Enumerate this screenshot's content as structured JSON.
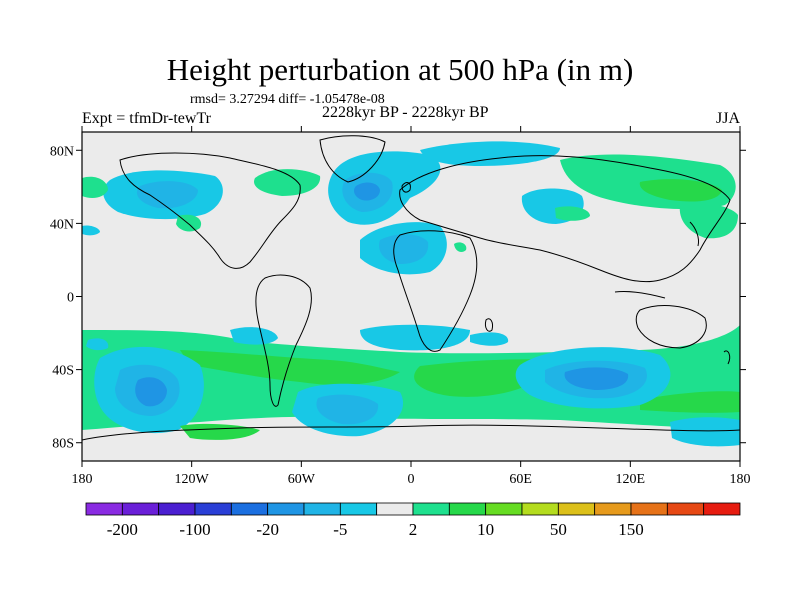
{
  "title": "Height perturbation at 500 hPa (in m)",
  "stats_line": "rmsd= 3.27294 diff= -1.05478e-08",
  "experiment": "Expt = tfmDr-tewTr",
  "period": "2228kyr BP - 2228kyr BP",
  "season": "JJA",
  "map": {
    "projection": "cylindrical equidistant",
    "lon_range": [
      -180,
      180
    ],
    "lat_range": [
      -90,
      90
    ],
    "background_color": "#ebebeb",
    "lat_ticks": [
      {
        "value": 80,
        "label": "80N"
      },
      {
        "value": 40,
        "label": "40N"
      },
      {
        "value": 0,
        "label": "0"
      },
      {
        "value": -40,
        "label": "40S"
      },
      {
        "value": -80,
        "label": "80S"
      }
    ],
    "lon_ticks": [
      {
        "value": -180,
        "label": "180"
      },
      {
        "value": -120,
        "label": "120W"
      },
      {
        "value": -60,
        "label": "60W"
      },
      {
        "value": 0,
        "label": "0"
      },
      {
        "value": 60,
        "label": "60E"
      },
      {
        "value": 120,
        "label": "120E"
      },
      {
        "value": 180,
        "label": "180"
      }
    ]
  },
  "colorbar": {
    "colors": [
      "#8a2be2",
      "#6a1fd8",
      "#4b1fd1",
      "#2a3fd6",
      "#1b6fe0",
      "#1f95e4",
      "#20b4e6",
      "#18c8e6",
      "#ebebeb",
      "#1ee08e",
      "#26d84a",
      "#66dc22",
      "#b4dc1e",
      "#dcc01a",
      "#e69a1c",
      "#e67218",
      "#e64814",
      "#e61c10"
    ],
    "labels": [
      "-200",
      "-100",
      "-20",
      "-5",
      "2",
      "10",
      "50",
      "150"
    ],
    "label_positions": [
      1,
      3,
      5,
      7,
      9,
      11,
      13,
      15
    ]
  }
}
